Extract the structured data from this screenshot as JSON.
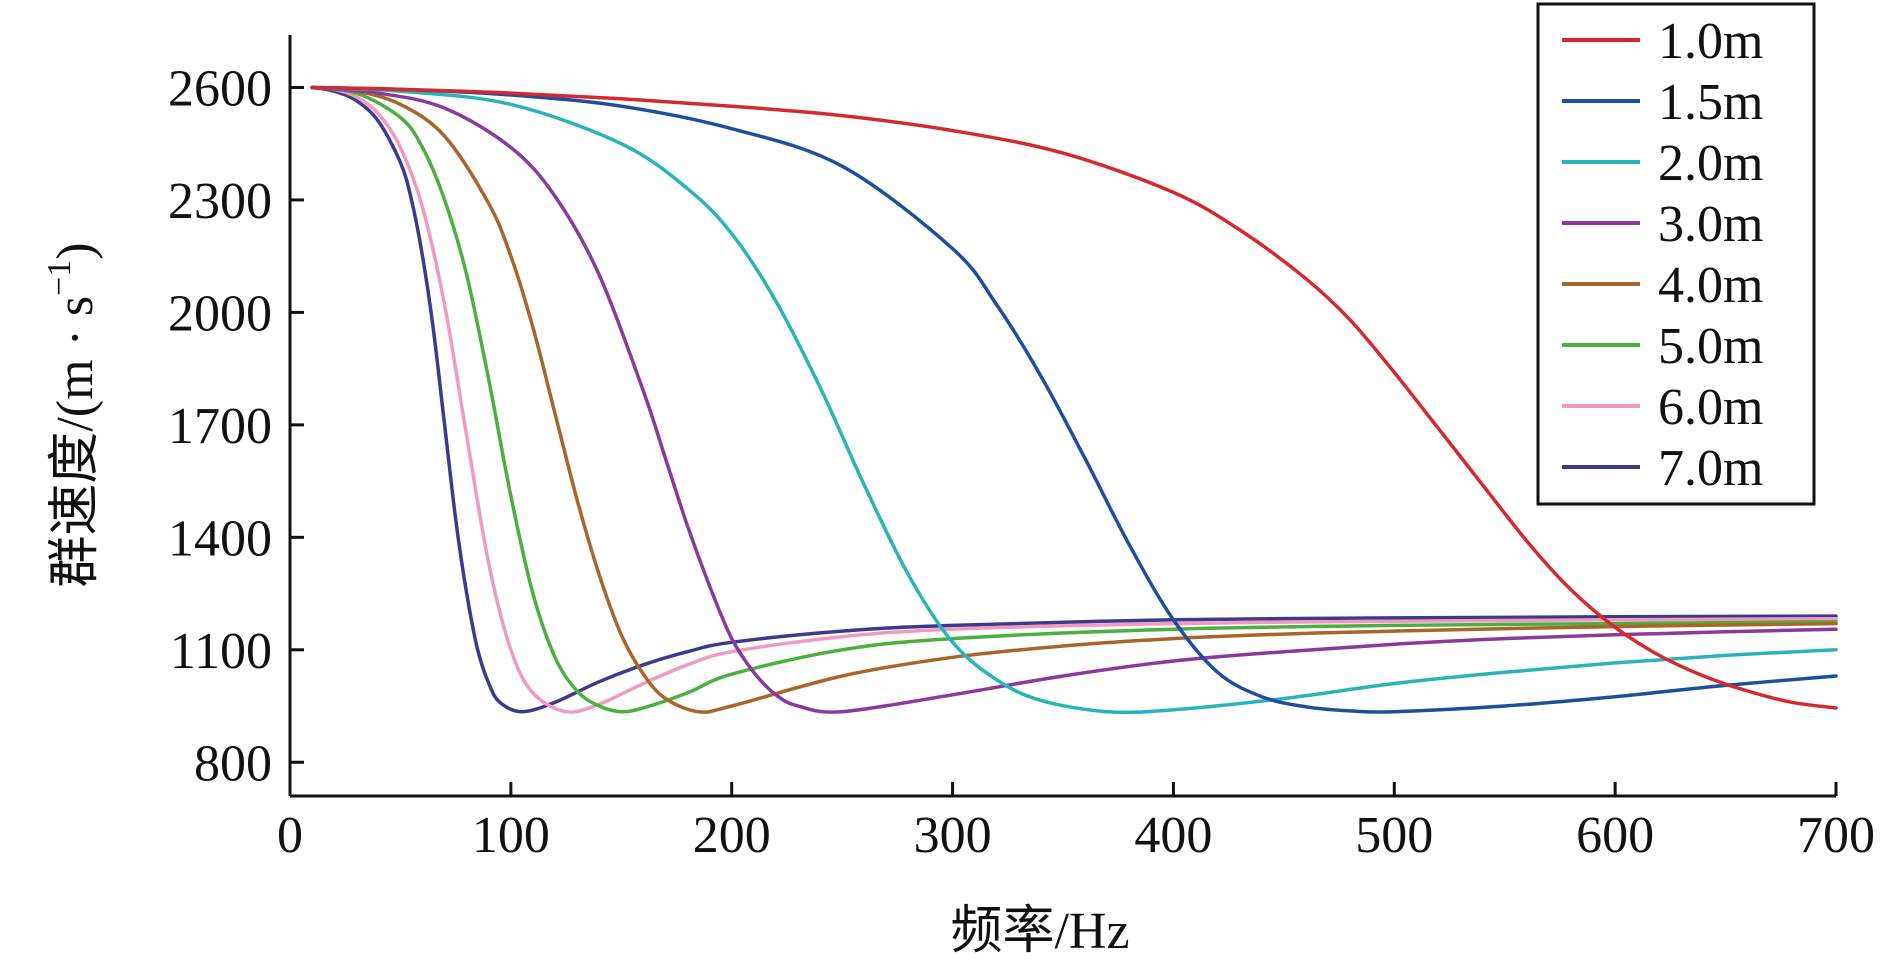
{
  "chart_data": {
    "type": "line",
    "xlabel": "频率/Hz",
    "ylabel": "群速度/(m · s",
    "ylabel_sup": "−1",
    "ylabel_end": ")",
    "xlim": [
      0,
      700
    ],
    "ylim": [
      710,
      2740
    ],
    "x_ticks": [
      0,
      100,
      200,
      300,
      400,
      500,
      600,
      700
    ],
    "y_ticks": [
      800,
      1100,
      1400,
      1700,
      2000,
      2300,
      2600
    ],
    "grid": false,
    "legend_position": "top-right",
    "series": [
      {
        "name": "1.0m",
        "color": "#d42a2f",
        "x": [
          10,
          50,
          100,
          150,
          200,
          250,
          300,
          350,
          400,
          430,
          460,
          480,
          500,
          520,
          540,
          560,
          580,
          600,
          620,
          640,
          660,
          680,
          700
        ],
        "y": [
          2600,
          2595,
          2585,
          2570,
          2550,
          2525,
          2485,
          2425,
          2320,
          2220,
          2090,
          1980,
          1840,
          1690,
          1540,
          1390,
          1260,
          1160,
          1085,
          1030,
          990,
          960,
          945
        ]
      },
      {
        "name": "1.5m",
        "color": "#1e4f9a",
        "x": [
          10,
          50,
          100,
          150,
          200,
          250,
          300,
          320,
          340,
          360,
          380,
          400,
          420,
          440,
          460,
          480,
          500,
          550,
          600,
          650,
          700
        ],
        "y": [
          2600,
          2595,
          2580,
          2550,
          2490,
          2390,
          2170,
          2020,
          1830,
          1610,
          1380,
          1180,
          1040,
          975,
          948,
          937,
          935,
          950,
          975,
          1005,
          1030
        ]
      },
      {
        "name": "2.0m",
        "color": "#2bb3ba",
        "x": [
          10,
          50,
          100,
          150,
          180,
          200,
          220,
          240,
          260,
          280,
          300,
          320,
          340,
          370,
          400,
          450,
          500,
          550,
          600,
          650,
          700
        ],
        "y": [
          2600,
          2590,
          2555,
          2450,
          2330,
          2210,
          2030,
          1800,
          1540,
          1300,
          1120,
          1020,
          965,
          935,
          940,
          970,
          1010,
          1040,
          1065,
          1085,
          1100
        ]
      },
      {
        "name": "3.0m",
        "color": "#8a3a9c",
        "x": [
          10,
          40,
          70,
          100,
          120,
          140,
          160,
          170,
          180,
          190,
          200,
          210,
          220,
          230,
          250,
          300,
          350,
          400,
          450,
          500,
          550,
          600,
          650,
          700
        ],
        "y": [
          2600,
          2585,
          2545,
          2440,
          2310,
          2100,
          1790,
          1610,
          1430,
          1270,
          1130,
          1040,
          980,
          950,
          935,
          980,
          1030,
          1070,
          1095,
          1115,
          1130,
          1140,
          1148,
          1155
        ]
      },
      {
        "name": "4.0m",
        "color": "#a8662a",
        "x": [
          10,
          30,
          50,
          70,
          90,
          100,
          110,
          120,
          130,
          140,
          150,
          160,
          170,
          185,
          200,
          250,
          300,
          350,
          400,
          450,
          500,
          600,
          700
        ],
        "y": [
          2600,
          2590,
          2555,
          2470,
          2290,
          2150,
          1960,
          1730,
          1500,
          1300,
          1140,
          1035,
          970,
          935,
          950,
          1030,
          1080,
          1110,
          1130,
          1142,
          1150,
          1162,
          1170
        ]
      },
      {
        "name": "5.0m",
        "color": "#4cb041",
        "x": [
          10,
          30,
          50,
          60,
          70,
          80,
          90,
          100,
          110,
          120,
          130,
          140,
          150,
          160,
          180,
          200,
          250,
          300,
          400,
          500,
          600,
          700
        ],
        "y": [
          2600,
          2585,
          2520,
          2440,
          2300,
          2100,
          1820,
          1510,
          1250,
          1080,
          990,
          950,
          935,
          945,
          985,
          1035,
          1100,
          1130,
          1155,
          1165,
          1170,
          1175
        ]
      },
      {
        "name": "6.0m",
        "color": "#f09ac0",
        "x": [
          10,
          20,
          30,
          40,
          50,
          60,
          70,
          80,
          90,
          100,
          110,
          125,
          140,
          160,
          180,
          200,
          250,
          300,
          400,
          500,
          600,
          700
        ],
        "y": [
          2600,
          2595,
          2575,
          2530,
          2440,
          2280,
          2020,
          1670,
          1330,
          1100,
          985,
          935,
          955,
          1010,
          1060,
          1095,
          1135,
          1155,
          1170,
          1176,
          1180,
          1183
        ]
      },
      {
        "name": "7.0m",
        "color": "#3d3a8e",
        "x": [
          10,
          20,
          30,
          40,
          50,
          55,
          60,
          65,
          70,
          75,
          80,
          85,
          90,
          95,
          105,
          120,
          140,
          160,
          180,
          200,
          250,
          300,
          400,
          500,
          600,
          700
        ],
        "y": [
          2600,
          2590,
          2565,
          2510,
          2400,
          2300,
          2150,
          1950,
          1700,
          1450,
          1250,
          1100,
          1010,
          960,
          935,
          960,
          1015,
          1060,
          1095,
          1120,
          1150,
          1165,
          1180,
          1185,
          1188,
          1190
        ]
      }
    ]
  }
}
